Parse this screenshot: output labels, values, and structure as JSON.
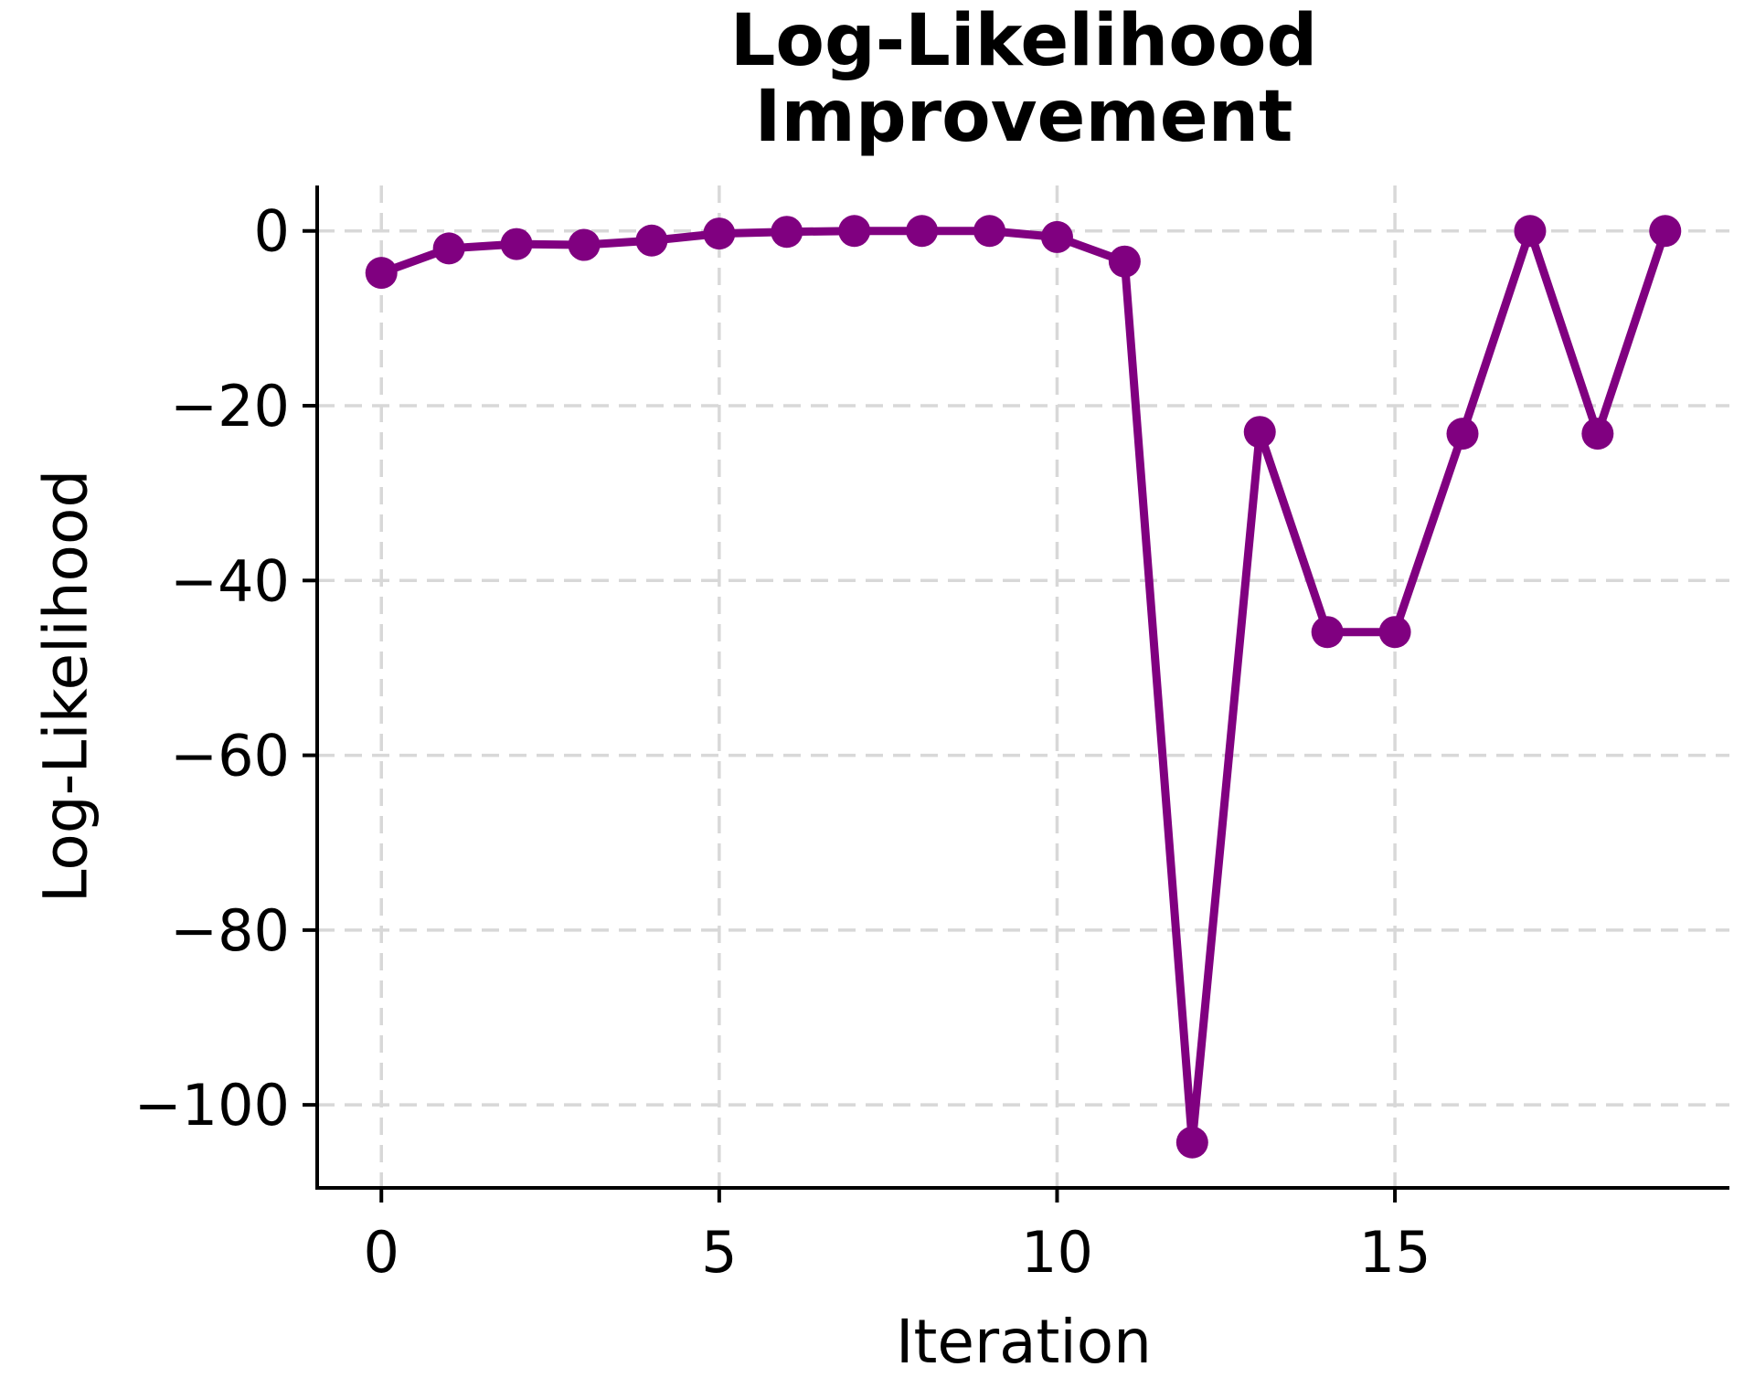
{
  "figure": {
    "title": "Log-Likelihood\nImprovement",
    "xlabel": "Iteration",
    "ylabel": "Log-Likelihood"
  },
  "chart_data": {
    "type": "line",
    "title": "Log-Likelihood Improvement",
    "xlabel": "Iteration",
    "ylabel": "Log-Likelihood",
    "x": [
      0,
      1,
      2,
      3,
      4,
      5,
      6,
      7,
      8,
      9,
      10,
      11,
      12,
      13,
      14,
      15,
      16,
      17,
      18,
      19
    ],
    "y": [
      -4.8,
      -2.0,
      -1.5,
      -1.6,
      -1.1,
      -0.3,
      -0.1,
      0.0,
      0.0,
      0.0,
      -0.7,
      -3.5,
      -104.3,
      -23.0,
      -45.9,
      -45.9,
      -23.2,
      0.0,
      -23.2,
      0.0
    ],
    "xticks": [
      0,
      5,
      10,
      15
    ],
    "yticks": [
      0,
      -20,
      -40,
      -60,
      -80,
      -100
    ],
    "xtick_labels": [
      "0",
      "5",
      "10",
      "15"
    ],
    "ytick_labels": [
      "0",
      "−20",
      "−40",
      "−60",
      "−80",
      "−100"
    ],
    "xlim": [
      -0.95,
      19.95
    ],
    "ylim": [
      -109.5,
      5.2
    ],
    "grid": true,
    "grid_style": "dashed",
    "legend": "none",
    "line_color": "#800080",
    "marker": "o",
    "grid_color": "#d8d8d8",
    "spine_color": "#000000",
    "tick_color": "#000000"
  }
}
